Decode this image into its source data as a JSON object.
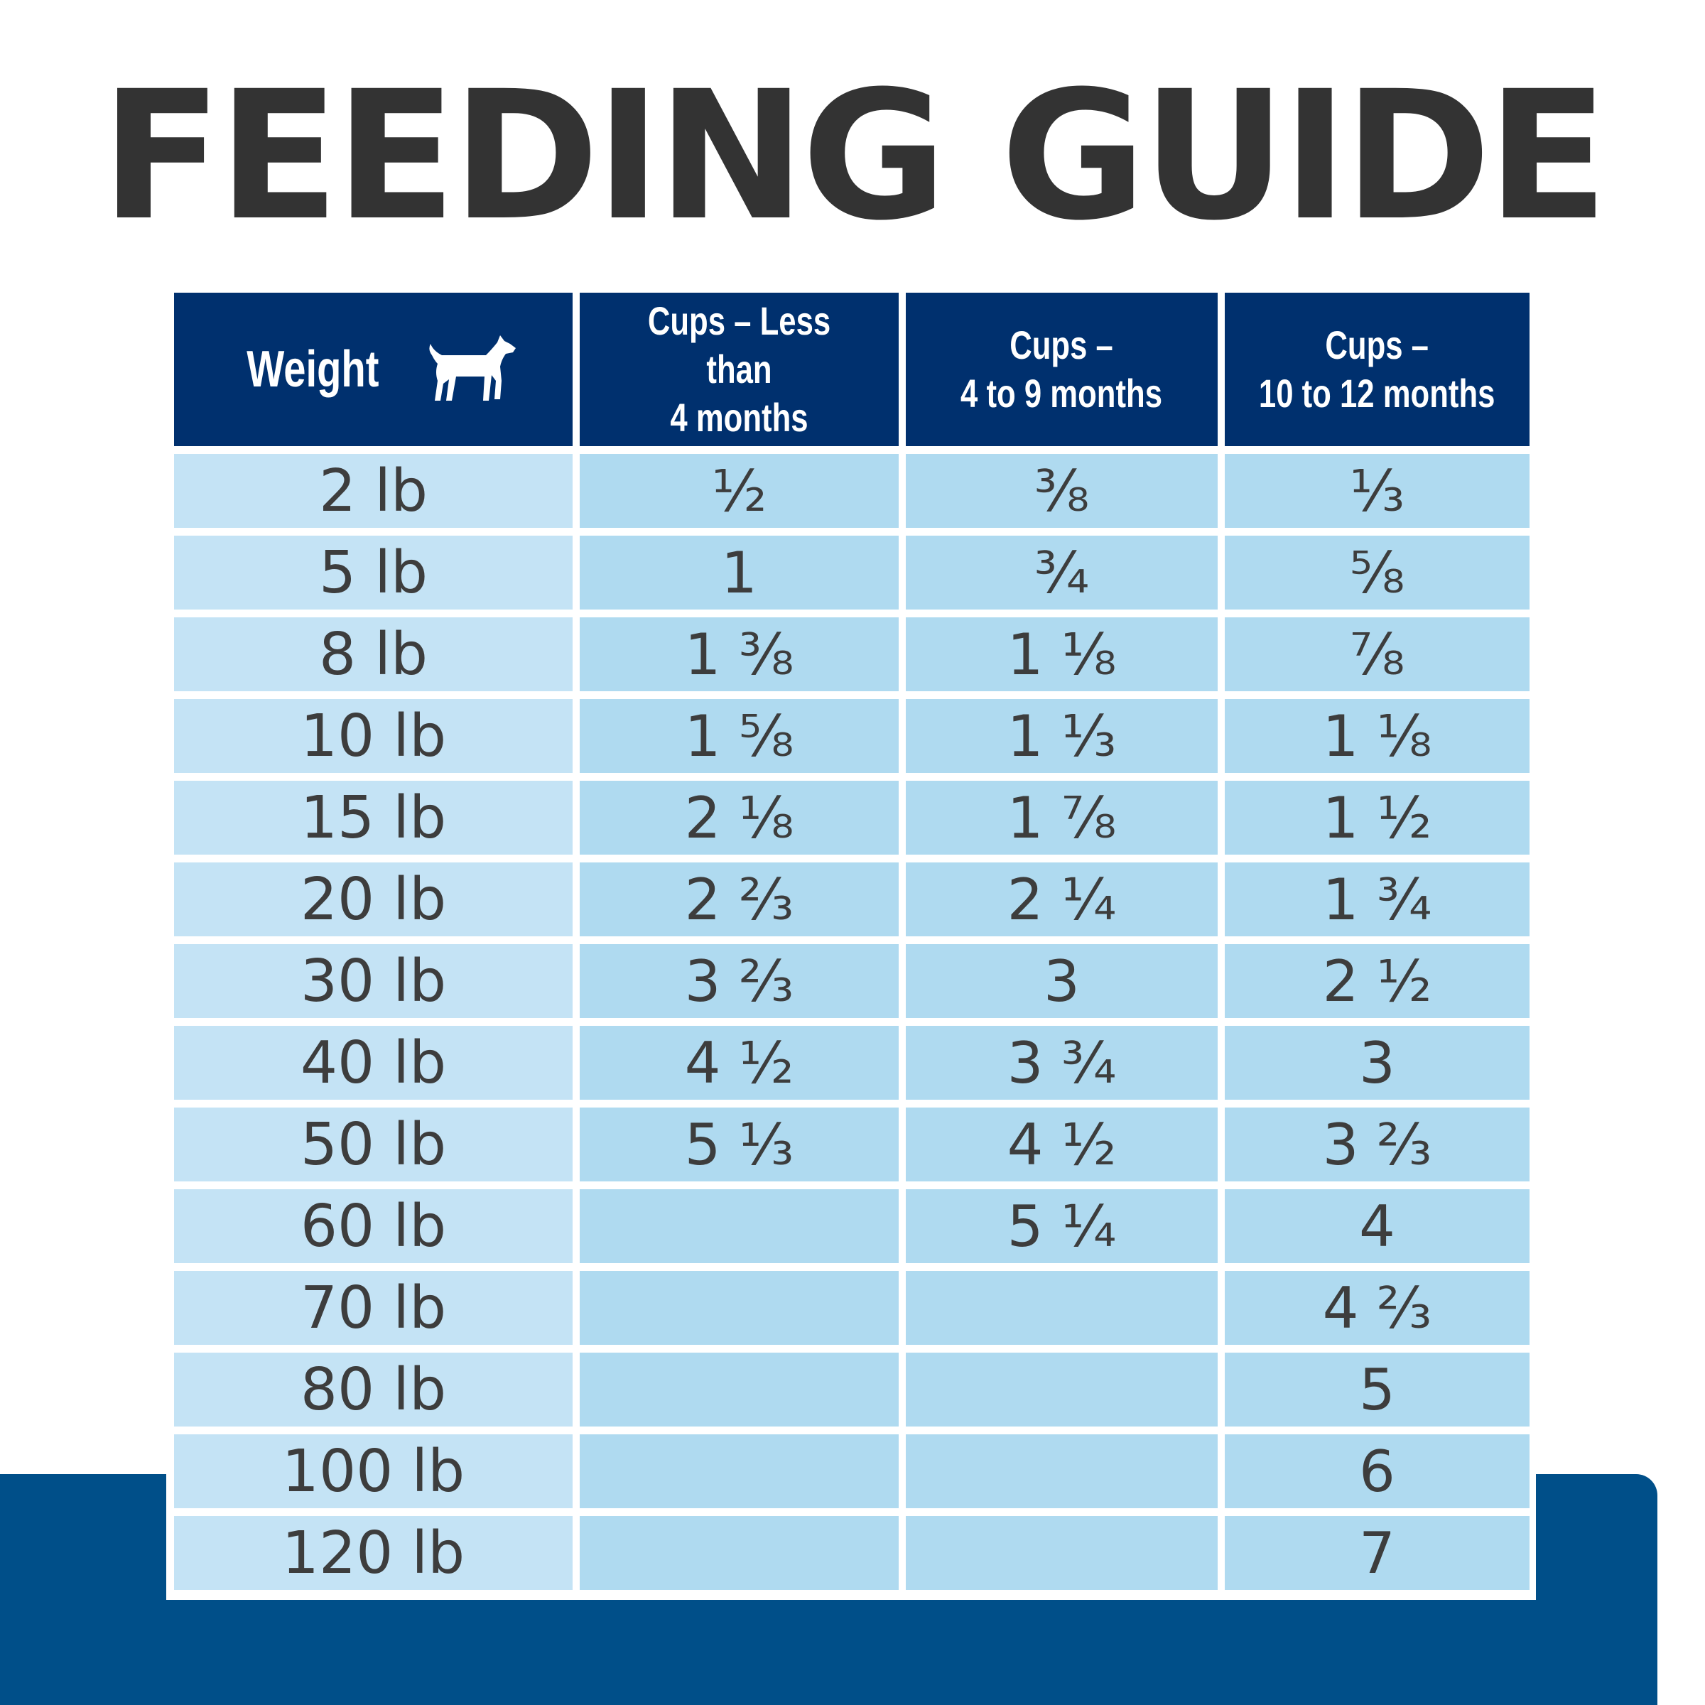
{
  "title": "FEEDING GUIDE",
  "icons": {
    "weight_header_icon": "dog-icon"
  },
  "colors": {
    "title": "#333333",
    "header_bg": "#00306e",
    "weight_cell_bg": "#c4e3f5",
    "cup_cell_bg": "#afdaf0",
    "bottom_band": "#004f89"
  },
  "table": {
    "headers": [
      "Weight",
      "Cups – Less than\n4 months",
      "Cups –\n4 to 9 months",
      "Cups –\n10 to 12 months"
    ],
    "rows": [
      [
        "2 lb",
        "½",
        "⅜",
        "⅓"
      ],
      [
        "5 lb",
        "1",
        "¾",
        "⅝"
      ],
      [
        "8 lb",
        "1 ⅜",
        "1 ⅛",
        "⅞"
      ],
      [
        "10 lb",
        "1 ⅝",
        "1 ⅓",
        "1 ⅛"
      ],
      [
        "15 lb",
        "2 ⅛",
        "1 ⅞",
        "1 ½"
      ],
      [
        "20 lb",
        "2 ⅔",
        "2 ¼",
        "1 ¾"
      ],
      [
        "30 lb",
        "3 ⅔",
        "3",
        "2 ½"
      ],
      [
        "40 lb",
        "4 ½",
        "3 ¾",
        "3"
      ],
      [
        "50 lb",
        "5 ⅓",
        "4 ½",
        "3 ⅔"
      ],
      [
        "60 lb",
        "",
        "5 ¼",
        "4"
      ],
      [
        "70 lb",
        "",
        "",
        "4 ⅔"
      ],
      [
        "80 lb",
        "",
        "",
        "5"
      ],
      [
        "100 lb",
        "",
        "",
        "6"
      ],
      [
        "120 lb",
        "",
        "",
        "7"
      ]
    ]
  }
}
